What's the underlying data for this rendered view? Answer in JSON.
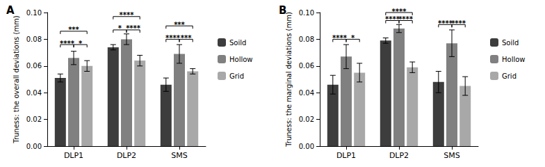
{
  "chart_data": [
    {
      "type": "bar",
      "panel": "A",
      "y_label": "Truness: the overall deviations (mm)",
      "categories": [
        "DLP1",
        "DLP2",
        "SMS"
      ],
      "series": [
        {
          "name": "Soild",
          "color": "#3d3d3d",
          "values": [
            0.051,
            0.074,
            0.046
          ],
          "errors": [
            0.003,
            0.002,
            0.005
          ]
        },
        {
          "name": "Hollow",
          "color": "#808080",
          "values": [
            0.066,
            0.08,
            0.069
          ],
          "errors": [
            0.005,
            0.004,
            0.007
          ]
        },
        {
          "name": "Grid",
          "color": "#a8a8a8",
          "values": [
            0.06,
            0.064,
            0.056
          ],
          "errors": [
            0.004,
            0.004,
            0.002
          ]
        }
      ],
      "ylim": [
        0,
        0.1
      ],
      "yticks": [
        {
          "value": 0,
          "label": "0.00"
        },
        {
          "value": 0.02,
          "label": "0.02"
        },
        {
          "value": 0.04,
          "label": "0.04"
        },
        {
          "value": 0.06,
          "label": "0.06"
        },
        {
          "value": 0.08,
          "label": "0.08"
        },
        {
          "value": 0.1,
          "label": "0.10"
        }
      ],
      "grid": false,
      "legend": "right",
      "comparisons": [
        {
          "category": "DLP1",
          "from": "Soild",
          "to": "Hollow",
          "label": "****",
          "y": 0.076
        },
        {
          "category": "DLP1",
          "from": "Hollow",
          "to": "Grid",
          "label": "*",
          "y": 0.076
        },
        {
          "category": "DLP1",
          "from": "Soild",
          "to": "Grid",
          "label": "***",
          "y": 0.086
        },
        {
          "category": "DLP2",
          "from": "Soild",
          "to": "Hollow",
          "label": "*",
          "y": 0.087
        },
        {
          "category": "DLP2",
          "from": "Hollow",
          "to": "Grid",
          "label": "****",
          "y": 0.087
        },
        {
          "category": "DLP2",
          "from": "Soild",
          "to": "Grid",
          "label": "****",
          "y": 0.097
        },
        {
          "category": "SMS",
          "from": "Soild",
          "to": "Hollow",
          "label": "****",
          "y": 0.08
        },
        {
          "category": "SMS",
          "from": "Hollow",
          "to": "Grid",
          "label": "***",
          "y": 0.08
        },
        {
          "category": "SMS",
          "from": "Soild",
          "to": "Grid",
          "label": "***",
          "y": 0.09
        }
      ]
    },
    {
      "type": "bar",
      "panel": "B",
      "y_label": "Truness: the marginal deviations (mm)",
      "categories": [
        "DLP1",
        "DLP2",
        "SMS"
      ],
      "series": [
        {
          "name": "Soild",
          "color": "#3d3d3d",
          "values": [
            0.046,
            0.079,
            0.048
          ],
          "errors": [
            0.007,
            0.002,
            0.008
          ]
        },
        {
          "name": "Hollow",
          "color": "#808080",
          "values": [
            0.067,
            0.088,
            0.077
          ],
          "errors": [
            0.009,
            0.003,
            0.01
          ]
        },
        {
          "name": "Grid",
          "color": "#a8a8a8",
          "values": [
            0.055,
            0.059,
            0.045
          ],
          "errors": [
            0.007,
            0.004,
            0.007
          ]
        }
      ],
      "ylim": [
        0,
        0.1
      ],
      "yticks": [
        {
          "value": 0,
          "label": "0.00"
        },
        {
          "value": 0.02,
          "label": "0.02"
        },
        {
          "value": 0.04,
          "label": "0.04"
        },
        {
          "value": 0.06,
          "label": "0.06"
        },
        {
          "value": 0.08,
          "label": "0.08"
        },
        {
          "value": 0.1,
          "label": "0.10"
        }
      ],
      "grid": false,
      "legend": "right",
      "comparisons": [
        {
          "category": "DLP1",
          "from": "Soild",
          "to": "Hollow",
          "label": "****",
          "y": 0.08
        },
        {
          "category": "DLP1",
          "from": "Hollow",
          "to": "Grid",
          "label": "*",
          "y": 0.08
        },
        {
          "category": "DLP2",
          "from": "Soild",
          "to": "Hollow",
          "label": "****",
          "y": 0.094
        },
        {
          "category": "DLP2",
          "from": "Hollow",
          "to": "Grid",
          "label": "****",
          "y": 0.094
        },
        {
          "category": "DLP2",
          "from": "Soild",
          "to": "Grid",
          "label": "****",
          "y": 0.1
        },
        {
          "category": "SMS",
          "from": "Soild",
          "to": "Hollow",
          "label": "****",
          "y": 0.091
        },
        {
          "category": "SMS",
          "from": "Hollow",
          "to": "Grid",
          "label": "****",
          "y": 0.091
        }
      ]
    }
  ]
}
